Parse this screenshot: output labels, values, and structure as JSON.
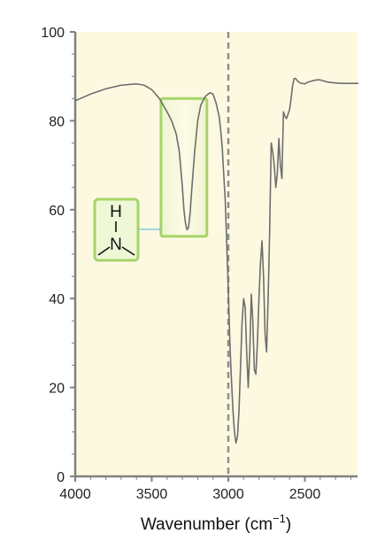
{
  "chart_data": {
    "type": "line",
    "title": "",
    "xlabel": "Wavenumber (cm",
    "xlabel_sup": "−1",
    "xlabel_end": ")",
    "ylabel": "",
    "xlim": [
      4000,
      2150
    ],
    "ylim": [
      0,
      100
    ],
    "x_ticks": [
      4000,
      3500,
      3000,
      2500
    ],
    "y_ticks": [
      0,
      20,
      40,
      60,
      80,
      100
    ],
    "x_tick_labels": [
      "4000",
      "3500",
      "3000",
      "2500"
    ],
    "y_tick_labels": [
      "0",
      "20",
      "40",
      "60",
      "80",
      "100"
    ],
    "grid": false,
    "series": [
      {
        "name": "",
        "x": [
          4000,
          3900,
          3800,
          3700,
          3600,
          3550,
          3500,
          3450,
          3400,
          3370,
          3340,
          3320,
          3300,
          3290,
          3280,
          3270,
          3260,
          3250,
          3240,
          3220,
          3200,
          3180,
          3150,
          3120,
          3100,
          3080,
          3060,
          3050,
          3040,
          3020,
          3000,
          2990,
          2980,
          2970,
          2960,
          2950,
          2940,
          2930,
          2920,
          2910,
          2900,
          2890,
          2880,
          2870,
          2860,
          2850,
          2840,
          2830,
          2820,
          2810,
          2800,
          2790,
          2780,
          2770,
          2760,
          2750,
          2740,
          2730,
          2720,
          2710,
          2700,
          2690,
          2680,
          2670,
          2660,
          2650,
          2640,
          2630,
          2620,
          2610,
          2600,
          2590,
          2580,
          2570,
          2560,
          2550,
          2530,
          2500,
          2480,
          2450,
          2420,
          2400,
          2380,
          2350,
          2300,
          2250,
          2200,
          2150
        ],
        "y": [
          84.5,
          86,
          87.2,
          88,
          88.3,
          88,
          87,
          85,
          82,
          80,
          77,
          73,
          65,
          60,
          57,
          55.5,
          56,
          59,
          64,
          73,
          80,
          83.5,
          85.5,
          86.3,
          86,
          84,
          81,
          78,
          74,
          62,
          42,
          30,
          22,
          15,
          10,
          7.5,
          9,
          15,
          25,
          35,
          40,
          38,
          28,
          20,
          28,
          41,
          35,
          24,
          23,
          30,
          40,
          48,
          53,
          45,
          32,
          28,
          40,
          55,
          75,
          73,
          70,
          65,
          68,
          76,
          70,
          67,
          82,
          81,
          80.5,
          81.5,
          82.5,
          85,
          88,
          89.5,
          89.5,
          89,
          88.5,
          88.3,
          88.7,
          89,
          89.2,
          89.2,
          89,
          88.7,
          88.5,
          88.4,
          88.4,
          88.4
        ]
      }
    ],
    "annotations": [
      {
        "type": "vline",
        "x": 3000,
        "style": "dashed"
      },
      {
        "type": "highlight-box",
        "x_range": [
          3440,
          3140
        ],
        "y_range": [
          54,
          85
        ]
      },
      {
        "type": "molecule-label",
        "atoms": [
          "H",
          "N"
        ]
      }
    ],
    "colors": {
      "plot_background": "#fdf9e1",
      "line": "#6e6e6e",
      "axis": "#808080",
      "dashed_line": "#8f8f8f",
      "highlight_border": "#a6d469",
      "connector": "#69c3e0"
    }
  }
}
